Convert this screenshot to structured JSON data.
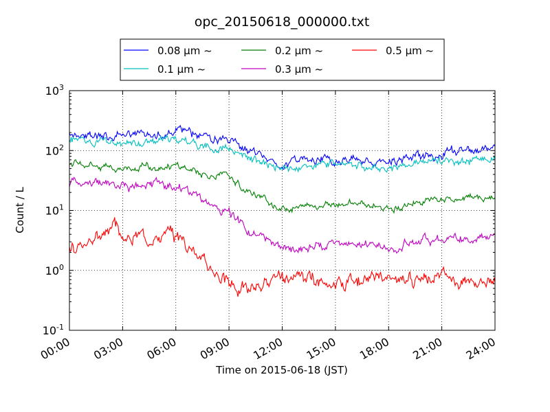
{
  "chart_data": {
    "type": "line",
    "title": "opc_20150618_000000.txt",
    "xlabel": "Time on 2015-06-18 (JST)",
    "ylabel": "Count / L",
    "xlim_hours": [
      0,
      24
    ],
    "xtick_labels": [
      "00:00",
      "03:00",
      "06:00",
      "09:00",
      "12:00",
      "15:00",
      "18:00",
      "21:00",
      "24:00"
    ],
    "y_scale": "log",
    "ylim": [
      0.1,
      1000
    ],
    "ytick_labels": [
      {
        "base": "10",
        "exp": "-1"
      },
      {
        "base": "10",
        "exp": "0"
      },
      {
        "base": "10",
        "exp": "1"
      },
      {
        "base": "10",
        "exp": "2"
      },
      {
        "base": "10",
        "exp": "3"
      }
    ],
    "grid": true,
    "legend_position": "top-center",
    "series": [
      {
        "name": "0.08 μm ~",
        "color": "#0000ff",
        "noise": 0.05,
        "x": [
          0,
          1,
          2,
          2.6,
          3.2,
          4,
          5,
          6,
          6.5,
          7,
          8,
          9,
          10,
          11,
          12,
          13,
          14,
          15,
          16,
          17,
          18,
          19,
          20,
          21,
          22,
          23,
          24
        ],
        "y": [
          205,
          185,
          175,
          160,
          170,
          190,
          200,
          215,
          220,
          185,
          155,
          130,
          95,
          70,
          62,
          65,
          72,
          68,
          70,
          68,
          62,
          75,
          80,
          88,
          92,
          100,
          110
        ]
      },
      {
        "name": "0.1 μm ~",
        "color": "#00bfbf",
        "noise": 0.045,
        "x": [
          0,
          1,
          2,
          2.6,
          3.2,
          4,
          5,
          6,
          6.5,
          7,
          8,
          9,
          10,
          11,
          12,
          13,
          14,
          15,
          16,
          17,
          18,
          19,
          20,
          21,
          22,
          23,
          24
        ],
        "y": [
          150,
          135,
          140,
          125,
          125,
          138,
          145,
          150,
          150,
          130,
          115,
          105,
          75,
          56,
          50,
          50,
          58,
          55,
          56,
          55,
          50,
          60,
          62,
          70,
          68,
          72,
          72
        ]
      },
      {
        "name": "0.2 μm ~",
        "color": "#007f00",
        "noise": 0.04,
        "x": [
          0,
          1,
          2,
          2.6,
          3.2,
          4,
          5,
          6,
          6.5,
          7,
          8,
          9,
          10,
          11,
          12,
          13,
          14,
          15,
          16,
          17,
          18,
          19,
          20,
          21,
          22,
          23,
          24
        ],
        "y": [
          60,
          60,
          58,
          50,
          52,
          55,
          55,
          55,
          52,
          45,
          38,
          35,
          22,
          15,
          11,
          11,
          12,
          13,
          14,
          12,
          11,
          12.5,
          13.5,
          15,
          15,
          16,
          17
        ]
      },
      {
        "name": "0.3 μm ~",
        "color": "#bf00bf",
        "noise": 0.05,
        "x": [
          0,
          1,
          2,
          2.6,
          3.2,
          4,
          5,
          6,
          6.5,
          7,
          8,
          9,
          10,
          11,
          12,
          13,
          14,
          15,
          16,
          17,
          18,
          19,
          20,
          21,
          22,
          23,
          24
        ],
        "y": [
          27,
          29,
          30,
          24,
          24,
          27,
          27,
          24,
          23,
          17,
          12,
          9,
          5,
          3.2,
          2.3,
          2.3,
          2.6,
          2.7,
          2.8,
          2.7,
          2.4,
          2.7,
          3.0,
          3.3,
          3.1,
          3.5,
          4.0
        ]
      },
      {
        "name": "0.5 μm ~",
        "color": "#ff0000",
        "noise": 0.075,
        "x": [
          0,
          0.5,
          1,
          1.5,
          2,
          2.4,
          2.6,
          3,
          3.2,
          4,
          5,
          6,
          6.5,
          7,
          7.5,
          8,
          8.5,
          9,
          10,
          11,
          12,
          13,
          14,
          15,
          16,
          17,
          18,
          19,
          20,
          21,
          22,
          23,
          24
        ],
        "y": [
          2.5,
          3.0,
          3.1,
          3.4,
          4.0,
          4.8,
          5.0,
          3.4,
          3.2,
          4.2,
          4.0,
          3.6,
          3.2,
          2.0,
          1.4,
          1.2,
          0.9,
          0.6,
          0.52,
          0.58,
          0.62,
          0.7,
          0.68,
          0.66,
          0.72,
          0.8,
          0.74,
          0.76,
          0.78,
          0.8,
          0.72,
          0.8,
          0.78
        ]
      }
    ]
  }
}
